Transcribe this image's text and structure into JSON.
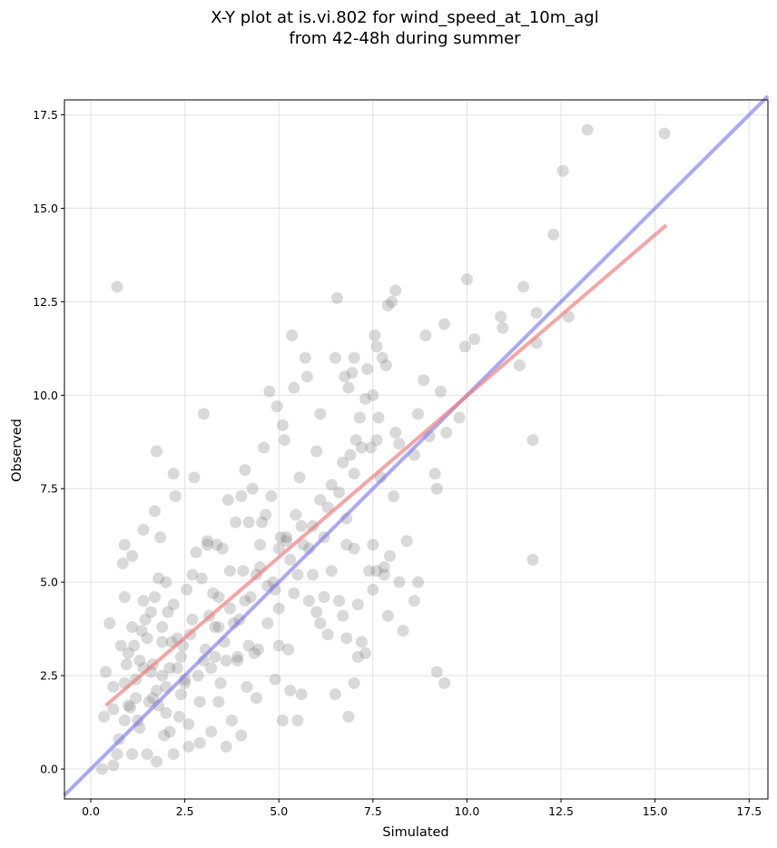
{
  "chart_data": {
    "type": "scatter",
    "title_lines": [
      "X-Y plot at is.vi.802 for wind_speed_at_10m_agl",
      "from 42-48h during summer"
    ],
    "xlabel": "Simulated",
    "ylabel": "Observed",
    "xlim": [
      -0.7,
      18.0
    ],
    "ylim": [
      -0.8,
      17.9
    ],
    "xticks": [
      0.0,
      2.5,
      5.0,
      7.5,
      10.0,
      12.5,
      15.0,
      17.5
    ],
    "yticks": [
      0.0,
      2.5,
      5.0,
      7.5,
      10.0,
      12.5,
      15.0,
      17.5
    ],
    "xtick_labels": [
      "0.0",
      "2.5",
      "5.0",
      "7.5",
      "10.0",
      "12.5",
      "15.0",
      "17.5"
    ],
    "ytick_labels": [
      "0.0",
      "2.5",
      "5.0",
      "7.5",
      "10.0",
      "12.5",
      "15.0",
      "17.5"
    ],
    "grid": true,
    "point_color": "#808080",
    "regression_color": "#f08080",
    "identity_color": "#7b7bf0",
    "regression_line": {
      "x": [
        0.4,
        15.3
      ],
      "y": [
        1.7,
        14.55
      ]
    },
    "identity_line": {
      "x": [
        -0.7,
        18.0
      ],
      "y": [
        -0.7,
        18.0
      ]
    },
    "points": [
      [
        0.7,
        12.9
      ],
      [
        0.4,
        2.6
      ],
      [
        0.5,
        3.9
      ],
      [
        0.35,
        1.4
      ],
      [
        0.6,
        1.6
      ],
      [
        0.6,
        0.1
      ],
      [
        0.7,
        0.4
      ],
      [
        0.75,
        0.8
      ],
      [
        0.8,
        3.3
      ],
      [
        0.85,
        5.5
      ],
      [
        0.9,
        4.6
      ],
      [
        0.9,
        6.0
      ],
      [
        0.95,
        2.8
      ],
      [
        1.0,
        1.7
      ],
      [
        1.05,
        1.65
      ],
      [
        1.1,
        5.7
      ],
      [
        1.1,
        3.8
      ],
      [
        1.15,
        3.3
      ],
      [
        1.2,
        2.4
      ],
      [
        1.25,
        1.3
      ],
      [
        1.3,
        1.1
      ],
      [
        1.3,
        2.9
      ],
      [
        1.35,
        3.7
      ],
      [
        1.4,
        6.4
      ],
      [
        1.4,
        4.5
      ],
      [
        1.45,
        4.0
      ],
      [
        1.5,
        3.5
      ],
      [
        1.55,
        1.8
      ],
      [
        1.6,
        4.2
      ],
      [
        1.65,
        1.9
      ],
      [
        1.65,
        2.8
      ],
      [
        1.7,
        6.9
      ],
      [
        1.7,
        4.6
      ],
      [
        1.75,
        8.5
      ],
      [
        1.75,
        2.1
      ],
      [
        1.8,
        5.1
      ],
      [
        1.8,
        1.7
      ],
      [
        1.85,
        6.2
      ],
      [
        1.9,
        2.5
      ],
      [
        1.9,
        3.4
      ],
      [
        1.95,
        0.9
      ],
      [
        2.0,
        1.5
      ],
      [
        2.0,
        5.0
      ],
      [
        2.05,
        4.2
      ],
      [
        2.1,
        2.7
      ],
      [
        2.15,
        3.4
      ],
      [
        2.2,
        7.9
      ],
      [
        2.25,
        7.3
      ],
      [
        2.3,
        3.5
      ],
      [
        2.3,
        2.7
      ],
      [
        2.35,
        1.4
      ],
      [
        2.4,
        3.0
      ],
      [
        2.45,
        3.3
      ],
      [
        2.5,
        2.3
      ],
      [
        2.55,
        4.8
      ],
      [
        2.6,
        0.6
      ],
      [
        2.65,
        3.6
      ],
      [
        2.7,
        4.0
      ],
      [
        2.75,
        7.8
      ],
      [
        2.8,
        5.8
      ],
      [
        2.85,
        2.5
      ],
      [
        2.9,
        0.7
      ],
      [
        2.95,
        5.1
      ],
      [
        3.0,
        9.5
      ],
      [
        3.05,
        3.2
      ],
      [
        3.1,
        6.1
      ],
      [
        3.15,
        4.1
      ],
      [
        3.2,
        2.7
      ],
      [
        3.25,
        4.7
      ],
      [
        3.3,
        3.0
      ],
      [
        3.35,
        6.0
      ],
      [
        3.4,
        3.8
      ],
      [
        3.45,
        2.3
      ],
      [
        3.5,
        5.9
      ],
      [
        3.55,
        3.4
      ],
      [
        3.6,
        2.9
      ],
      [
        3.65,
        7.2
      ],
      [
        3.7,
        5.3
      ],
      [
        3.75,
        1.3
      ],
      [
        3.8,
        3.9
      ],
      [
        3.85,
        6.6
      ],
      [
        3.9,
        3.0
      ],
      [
        3.95,
        4.0
      ],
      [
        4.0,
        7.3
      ],
      [
        4.05,
        5.3
      ],
      [
        4.1,
        8.0
      ],
      [
        4.15,
        2.2
      ],
      [
        4.2,
        6.6
      ],
      [
        4.25,
        4.6
      ],
      [
        4.3,
        7.5
      ],
      [
        4.35,
        3.1
      ],
      [
        4.4,
        5.2
      ],
      [
        4.45,
        3.2
      ],
      [
        4.5,
        6.0
      ],
      [
        4.55,
        6.6
      ],
      [
        4.6,
        8.6
      ],
      [
        4.65,
        6.8
      ],
      [
        4.7,
        4.9
      ],
      [
        4.75,
        10.1
      ],
      [
        4.8,
        7.3
      ],
      [
        4.85,
        5.0
      ],
      [
        4.9,
        2.4
      ],
      [
        4.95,
        9.7
      ],
      [
        5.0,
        4.3
      ],
      [
        5.05,
        6.2
      ],
      [
        5.1,
        9.2
      ],
      [
        5.15,
        8.8
      ],
      [
        5.2,
        6.1
      ],
      [
        5.25,
        3.2
      ],
      [
        5.3,
        2.1
      ],
      [
        5.35,
        11.6
      ],
      [
        5.4,
        10.2
      ],
      [
        5.45,
        6.8
      ],
      [
        5.5,
        5.2
      ],
      [
        5.55,
        7.8
      ],
      [
        5.6,
        2.0
      ],
      [
        5.65,
        6.0
      ],
      [
        5.7,
        11.0
      ],
      [
        5.75,
        10.5
      ],
      [
        5.8,
        5.9
      ],
      [
        5.9,
        6.5
      ],
      [
        6.0,
        8.5
      ],
      [
        6.1,
        9.5
      ],
      [
        6.2,
        6.2
      ],
      [
        6.3,
        7.0
      ],
      [
        6.4,
        7.6
      ],
      [
        6.5,
        11.0
      ],
      [
        6.55,
        12.6
      ],
      [
        6.6,
        4.5
      ],
      [
        6.7,
        8.2
      ],
      [
        6.75,
        10.5
      ],
      [
        6.8,
        6.7
      ],
      [
        6.85,
        10.2
      ],
      [
        6.9,
        8.4
      ],
      [
        6.95,
        10.6
      ],
      [
        7.0,
        11.0
      ],
      [
        7.05,
        8.8
      ],
      [
        7.1,
        3.0
      ],
      [
        7.15,
        9.4
      ],
      [
        7.2,
        8.6
      ],
      [
        7.3,
        9.9
      ],
      [
        7.35,
        10.7
      ],
      [
        7.4,
        5.3
      ],
      [
        7.45,
        8.6
      ],
      [
        7.5,
        10.0
      ],
      [
        7.55,
        11.6
      ],
      [
        7.6,
        11.3
      ],
      [
        7.65,
        9.4
      ],
      [
        7.7,
        7.8
      ],
      [
        7.75,
        11.0
      ],
      [
        7.8,
        5.4
      ],
      [
        7.85,
        10.8
      ],
      [
        7.9,
        12.4
      ],
      [
        7.95,
        5.7
      ],
      [
        8.0,
        12.5
      ],
      [
        8.05,
        7.3
      ],
      [
        8.1,
        12.8
      ],
      [
        8.2,
        8.7
      ],
      [
        8.4,
        6.1
      ],
      [
        8.6,
        8.4
      ],
      [
        8.7,
        9.5
      ],
      [
        8.85,
        10.4
      ],
      [
        8.9,
        11.6
      ],
      [
        9.0,
        8.9
      ],
      [
        9.15,
        7.9
      ],
      [
        9.2,
        7.5
      ],
      [
        9.3,
        10.1
      ],
      [
        9.4,
        11.9
      ],
      [
        9.45,
        9.0
      ],
      [
        9.2,
        2.6
      ],
      [
        9.4,
        2.3
      ],
      [
        9.8,
        9.4
      ],
      [
        9.95,
        11.3
      ],
      [
        10.0,
        13.1
      ],
      [
        10.2,
        11.5
      ],
      [
        10.9,
        12.1
      ],
      [
        10.95,
        11.8
      ],
      [
        11.4,
        10.8
      ],
      [
        11.5,
        12.9
      ],
      [
        11.75,
        8.8
      ],
      [
        11.75,
        5.6
      ],
      [
        11.85,
        11.4
      ],
      [
        11.85,
        12.2
      ],
      [
        12.3,
        14.3
      ],
      [
        12.55,
        16.0
      ],
      [
        12.7,
        12.1
      ],
      [
        13.2,
        17.1
      ],
      [
        15.25,
        17.0
      ],
      [
        0.9,
        2.3
      ],
      [
        1.5,
        0.4
      ],
      [
        1.75,
        0.2
      ],
      [
        2.1,
        1.0
      ],
      [
        2.4,
        2.0
      ],
      [
        3.2,
        1.0
      ],
      [
        3.6,
        0.6
      ],
      [
        4.0,
        0.9
      ],
      [
        4.4,
        1.9
      ],
      [
        5.1,
        1.3
      ],
      [
        5.5,
        1.3
      ],
      [
        6.5,
        2.0
      ],
      [
        6.85,
        1.4
      ],
      [
        7.0,
        2.3
      ],
      [
        7.2,
        3.4
      ],
      [
        6.8,
        3.5
      ],
      [
        6.3,
        3.6
      ],
      [
        6.2,
        4.6
      ],
      [
        6.4,
        5.3
      ],
      [
        6.8,
        6.0
      ],
      [
        7.0,
        5.9
      ],
      [
        7.5,
        6.0
      ],
      [
        7.6,
        5.3
      ],
      [
        7.8,
        5.2
      ],
      [
        8.2,
        5.0
      ],
      [
        8.6,
        4.5
      ],
      [
        8.7,
        5.0
      ],
      [
        7.5,
        4.8
      ],
      [
        7.1,
        4.4
      ],
      [
        6.0,
        4.2
      ],
      [
        5.9,
        5.2
      ],
      [
        5.4,
        4.7
      ],
      [
        5.0,
        3.3
      ],
      [
        4.2,
        3.3
      ],
      [
        3.9,
        2.9
      ],
      [
        3.4,
        1.8
      ],
      [
        2.9,
        1.8
      ],
      [
        2.6,
        1.2
      ],
      [
        2.2,
        0.4
      ],
      [
        1.1,
        0.4
      ],
      [
        0.3,
        0.0
      ],
      [
        0.6,
        2.2
      ],
      [
        1.0,
        3.1
      ],
      [
        1.6,
        2.6
      ],
      [
        2.0,
        2.2
      ],
      [
        2.5,
        2.4
      ],
      [
        3.0,
        2.9
      ],
      [
        3.3,
        3.8
      ],
      [
        3.7,
        4.3
      ],
      [
        4.1,
        4.5
      ],
      [
        4.5,
        5.4
      ],
      [
        5.0,
        5.9
      ],
      [
        5.2,
        6.2
      ],
      [
        5.6,
        6.5
      ],
      [
        6.1,
        7.2
      ],
      [
        6.6,
        7.4
      ],
      [
        7.0,
        7.9
      ],
      [
        7.6,
        8.8
      ],
      [
        8.1,
        9.0
      ],
      [
        2.7,
        5.2
      ],
      [
        3.1,
        6.0
      ],
      [
        3.4,
        4.6
      ],
      [
        2.2,
        4.4
      ],
      [
        1.9,
        3.8
      ],
      [
        1.4,
        2.7
      ],
      [
        1.2,
        1.9
      ],
      [
        0.9,
        1.3
      ],
      [
        4.7,
        3.9
      ],
      [
        4.9,
        4.8
      ],
      [
        5.3,
        5.6
      ],
      [
        5.8,
        4.5
      ],
      [
        6.1,
        3.9
      ],
      [
        6.7,
        4.1
      ],
      [
        7.3,
        3.1
      ],
      [
        7.9,
        4.1
      ],
      [
        8.3,
        3.7
      ]
    ]
  }
}
